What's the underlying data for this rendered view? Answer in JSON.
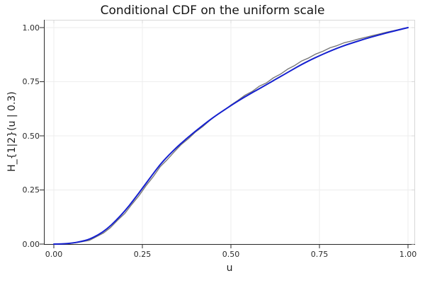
{
  "chart_data": {
    "type": "line",
    "title": "Conditional CDF on the uniform scale",
    "xlabel": "u",
    "ylabel": "H_{1|2}(u | 0.3)",
    "xlim": [
      0,
      1
    ],
    "ylim": [
      0,
      1
    ],
    "grid": true,
    "legend_position": "none",
    "xticks": {
      "values": [
        0.0,
        0.25,
        0.5,
        0.75,
        1.0
      ],
      "labels": [
        "0.00",
        "0.25",
        "0.50",
        "0.75",
        "1.00"
      ]
    },
    "yticks": {
      "values": [
        0.0,
        0.25,
        0.5,
        0.75,
        1.0
      ],
      "labels": [
        "0.00",
        "0.25",
        "0.50",
        "0.75",
        "1.00"
      ]
    },
    "colors": {
      "blue_line": "#1520d0",
      "gray_line": "#787878",
      "gridline": "#ededed",
      "spine_dark": "#2a2a2a",
      "spine_light": "#d8d8d8",
      "text": "#1f1f1f",
      "background": "#ffffff"
    },
    "series": [
      {
        "name": "gray-jagged-line",
        "color": "#787878",
        "line_width": 1.4,
        "style": "jagged",
        "x": [
          0.0,
          0.02,
          0.04,
          0.06,
          0.08,
          0.1,
          0.12,
          0.14,
          0.16,
          0.18,
          0.2,
          0.22,
          0.24,
          0.26,
          0.28,
          0.3,
          0.32,
          0.34,
          0.36,
          0.38,
          0.4,
          0.42,
          0.44,
          0.46,
          0.48,
          0.5,
          0.52,
          0.54,
          0.56,
          0.58,
          0.6,
          0.62,
          0.64,
          0.66,
          0.68,
          0.7,
          0.72,
          0.74,
          0.76,
          0.78,
          0.8,
          0.82,
          0.84,
          0.86,
          0.88,
          0.9,
          0.92,
          0.94,
          0.96,
          0.98,
          1.0
        ],
        "y": [
          0.0,
          0.001,
          0.002,
          0.006,
          0.011,
          0.017,
          0.034,
          0.051,
          0.076,
          0.11,
          0.141,
          0.183,
          0.223,
          0.269,
          0.31,
          0.357,
          0.39,
          0.426,
          0.46,
          0.487,
          0.518,
          0.542,
          0.571,
          0.596,
          0.617,
          0.642,
          0.664,
          0.688,
          0.705,
          0.729,
          0.744,
          0.768,
          0.785,
          0.808,
          0.825,
          0.846,
          0.86,
          0.878,
          0.891,
          0.907,
          0.917,
          0.93,
          0.938,
          0.947,
          0.955,
          0.963,
          0.971,
          0.979,
          0.986,
          0.993,
          1.0
        ]
      },
      {
        "name": "blue-smooth-line",
        "color": "#1520d0",
        "line_width": 2.0,
        "style": "smooth",
        "x": [
          0.0,
          0.025,
          0.05,
          0.075,
          0.1,
          0.125,
          0.15,
          0.175,
          0.2,
          0.225,
          0.25,
          0.275,
          0.3,
          0.325,
          0.35,
          0.375,
          0.4,
          0.425,
          0.45,
          0.475,
          0.5,
          0.525,
          0.55,
          0.575,
          0.6,
          0.625,
          0.65,
          0.675,
          0.7,
          0.725,
          0.75,
          0.775,
          0.8,
          0.825,
          0.85,
          0.875,
          0.9,
          0.925,
          0.95,
          0.975,
          1.0
        ],
        "y": [
          0.0,
          0.001,
          0.004,
          0.011,
          0.022,
          0.042,
          0.07,
          0.108,
          0.152,
          0.203,
          0.258,
          0.313,
          0.368,
          0.412,
          0.452,
          0.488,
          0.522,
          0.554,
          0.585,
          0.613,
          0.64,
          0.666,
          0.69,
          0.713,
          0.736,
          0.76,
          0.783,
          0.807,
          0.83,
          0.851,
          0.87,
          0.888,
          0.905,
          0.92,
          0.933,
          0.946,
          0.958,
          0.969,
          0.98,
          0.99,
          1.0
        ]
      }
    ]
  }
}
